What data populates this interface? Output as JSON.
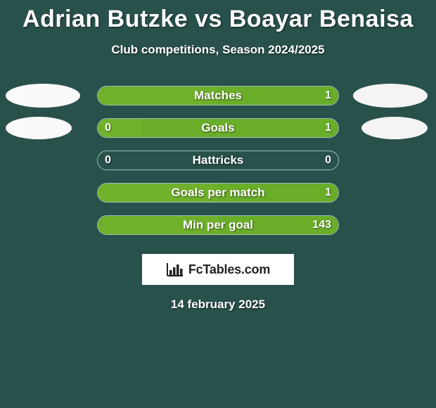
{
  "background_color": "#29514c",
  "text_color": "#ffffff",
  "title": "Adrian Butzke vs Boayar Benaisa",
  "subtitle": "Club competitions, Season 2024/2025",
  "date": "14 february 2025",
  "bar_colors": {
    "left_fill": "#70b12b",
    "right_fill_default": "#3e766e",
    "border": "#9fbeb8"
  },
  "ellipse_colors": {
    "left": "#fafafa",
    "right": "#f4f4f4"
  },
  "logo": {
    "text": "FcTables.com",
    "text_color": "#222222",
    "background": "#ffffff"
  },
  "rows": [
    {
      "label": "Matches",
      "left_value": "",
      "right_value": "1",
      "left_pct": 50,
      "right_pct": 50,
      "right_fill_color": "#69ad28",
      "show_left_ellipse": true,
      "show_right_ellipse": true,
      "ellipse_small": false
    },
    {
      "label": "Goals",
      "left_value": "0",
      "right_value": "1",
      "left_pct": 18,
      "right_pct": 82,
      "right_fill_color": "#69ad28",
      "show_left_ellipse": true,
      "show_right_ellipse": true,
      "ellipse_small": true
    },
    {
      "label": "Hattricks",
      "left_value": "0",
      "right_value": "0",
      "left_pct": 0,
      "right_pct": 0,
      "right_fill_color": "#3e766e",
      "show_left_ellipse": false,
      "show_right_ellipse": false,
      "ellipse_small": false
    },
    {
      "label": "Goals per match",
      "left_value": "",
      "right_value": "1",
      "left_pct": 50,
      "right_pct": 50,
      "right_fill_color": "#69ad28",
      "show_left_ellipse": false,
      "show_right_ellipse": false,
      "ellipse_small": false
    },
    {
      "label": "Min per goal",
      "left_value": "",
      "right_value": "143",
      "left_pct": 50,
      "right_pct": 50,
      "right_fill_color": "#69ad28",
      "show_left_ellipse": false,
      "show_right_ellipse": false,
      "ellipse_small": false
    }
  ]
}
